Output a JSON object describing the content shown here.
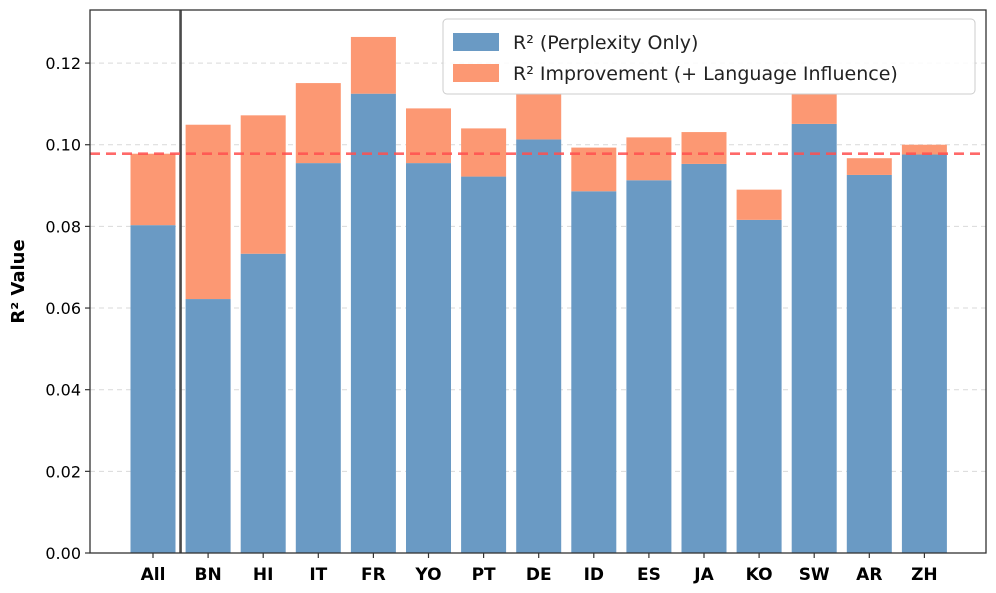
{
  "chart_data": {
    "type": "bar",
    "stacked": true,
    "categories": [
      "All",
      "BN",
      "HI",
      "IT",
      "FR",
      "YO",
      "PT",
      "DE",
      "ID",
      "ES",
      "JA",
      "KO",
      "SW",
      "AR",
      "ZH"
    ],
    "series": [
      {
        "name": "R² (Perplexity Only)",
        "color": "#6a9ac4",
        "values": [
          0.0803,
          0.0622,
          0.0733,
          0.0955,
          0.1125,
          0.0955,
          0.0922,
          0.1013,
          0.0886,
          0.0913,
          0.0953,
          0.0816,
          0.1051,
          0.0926,
          0.0976
        ]
      },
      {
        "name": "R² Improvement (+ Language Influence)",
        "color": "#fc9873",
        "values": [
          0.0175,
          0.0427,
          0.0339,
          0.0196,
          0.0139,
          0.0134,
          0.0118,
          0.0112,
          0.0107,
          0.0105,
          0.0078,
          0.0074,
          0.0072,
          0.0041,
          0.0024
        ]
      }
    ],
    "reference_line": {
      "value": 0.0978,
      "style": "dashed",
      "color": "#ff4f4f"
    },
    "separator_after_category": "All",
    "xlabel": "",
    "ylabel": "R² Value",
    "ylim": [
      0,
      0.133
    ],
    "yticks": [
      0.0,
      0.02,
      0.04,
      0.06,
      0.08,
      0.1,
      0.12
    ],
    "ytick_labels": [
      "0.00",
      "0.02",
      "0.04",
      "0.06",
      "0.08",
      "0.10",
      "0.12"
    ],
    "grid": "horizontal-dashed",
    "legend_position": "top-right"
  }
}
